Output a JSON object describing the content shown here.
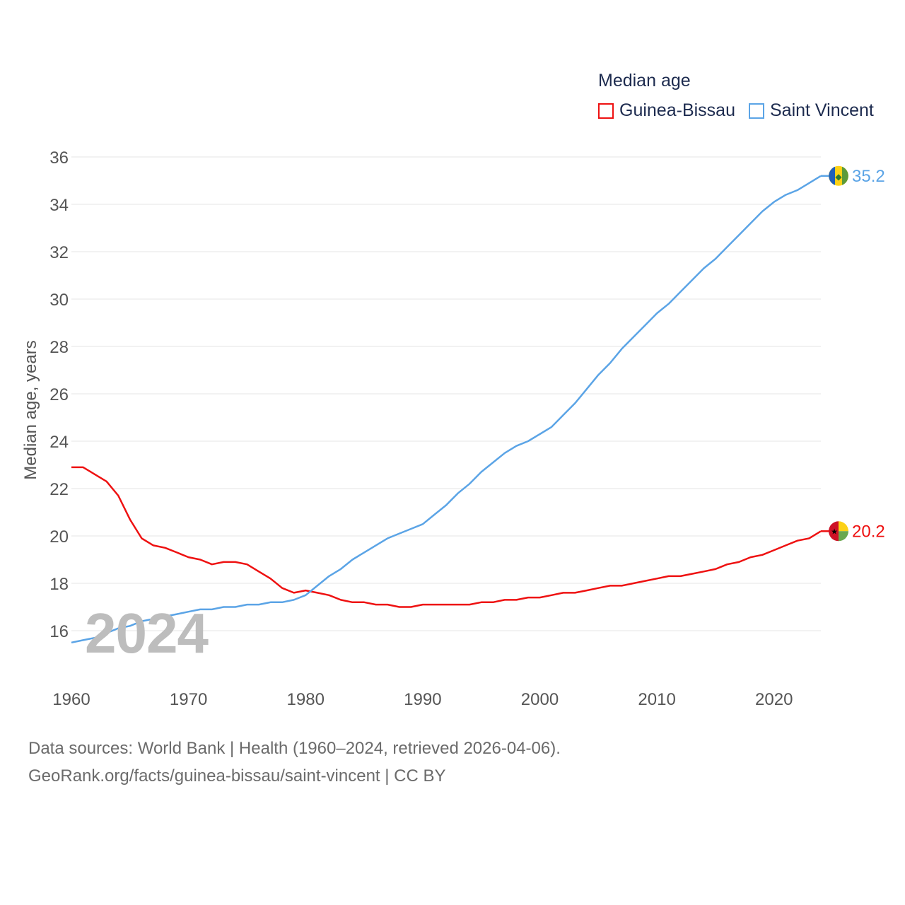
{
  "legend": {
    "title": "Median age",
    "items": [
      {
        "label": "Guinea-Bissau",
        "color": "#ee1111"
      },
      {
        "label": "Saint Vincent",
        "color": "#5ba4e6"
      }
    ]
  },
  "current_year": "2024",
  "source_line1": "Data sources: World Bank | Health (1960–2024, retrieved 2026-04-06).",
  "source_line2": "GeoRank.org/facts/guinea-bissau/saint-vincent | CC BY",
  "chart_data": {
    "type": "line",
    "title": "Median age",
    "xlabel": "",
    "ylabel": "Median age, years",
    "xlim": [
      1960,
      2024
    ],
    "ylim": [
      15,
      36
    ],
    "xticks": [
      1960,
      1970,
      1980,
      1990,
      2000,
      2010,
      2020
    ],
    "yticks": [
      16,
      18,
      20,
      22,
      24,
      26,
      28,
      30,
      32,
      34,
      36
    ],
    "grid": true,
    "legend_position": "top-right",
    "x": [
      1960,
      1961,
      1962,
      1963,
      1964,
      1965,
      1966,
      1967,
      1968,
      1969,
      1970,
      1971,
      1972,
      1973,
      1974,
      1975,
      1976,
      1977,
      1978,
      1979,
      1980,
      1981,
      1982,
      1983,
      1984,
      1985,
      1986,
      1987,
      1988,
      1989,
      1990,
      1991,
      1992,
      1993,
      1994,
      1995,
      1996,
      1997,
      1998,
      1999,
      2000,
      2001,
      2002,
      2003,
      2004,
      2005,
      2006,
      2007,
      2008,
      2009,
      2010,
      2011,
      2012,
      2013,
      2014,
      2015,
      2016,
      2017,
      2018,
      2019,
      2020,
      2021,
      2022,
      2023,
      2024
    ],
    "series": [
      {
        "name": "Guinea-Bissau",
        "color": "#ee1111",
        "end_label": "20.2",
        "values": [
          22.9,
          22.9,
          22.6,
          22.3,
          21.7,
          20.7,
          19.9,
          19.6,
          19.5,
          19.3,
          19.1,
          19.0,
          18.8,
          18.9,
          18.9,
          18.8,
          18.5,
          18.2,
          17.8,
          17.6,
          17.7,
          17.6,
          17.5,
          17.3,
          17.2,
          17.2,
          17.1,
          17.1,
          17.0,
          17.0,
          17.1,
          17.1,
          17.1,
          17.1,
          17.1,
          17.2,
          17.2,
          17.3,
          17.3,
          17.4,
          17.4,
          17.5,
          17.6,
          17.6,
          17.7,
          17.8,
          17.9,
          17.9,
          18.0,
          18.1,
          18.2,
          18.3,
          18.3,
          18.4,
          18.5,
          18.6,
          18.8,
          18.9,
          19.1,
          19.2,
          19.4,
          19.6,
          19.8,
          19.9,
          20.2
        ]
      },
      {
        "name": "Saint Vincent",
        "color": "#5ba4e6",
        "end_label": "35.2",
        "values": [
          15.5,
          15.6,
          15.7,
          15.9,
          16.1,
          16.2,
          16.4,
          16.5,
          16.6,
          16.7,
          16.8,
          16.9,
          16.9,
          17.0,
          17.0,
          17.1,
          17.1,
          17.2,
          17.2,
          17.3,
          17.5,
          17.9,
          18.3,
          18.6,
          19.0,
          19.3,
          19.6,
          19.9,
          20.1,
          20.3,
          20.5,
          20.9,
          21.3,
          21.8,
          22.2,
          22.7,
          23.1,
          23.5,
          23.8,
          24.0,
          24.3,
          24.6,
          25.1,
          25.6,
          26.2,
          26.8,
          27.3,
          27.9,
          28.4,
          28.9,
          29.4,
          29.8,
          30.3,
          30.8,
          31.3,
          31.7,
          32.2,
          32.7,
          33.2,
          33.7,
          34.1,
          34.4,
          34.6,
          34.9,
          35.2
        ]
      }
    ]
  }
}
